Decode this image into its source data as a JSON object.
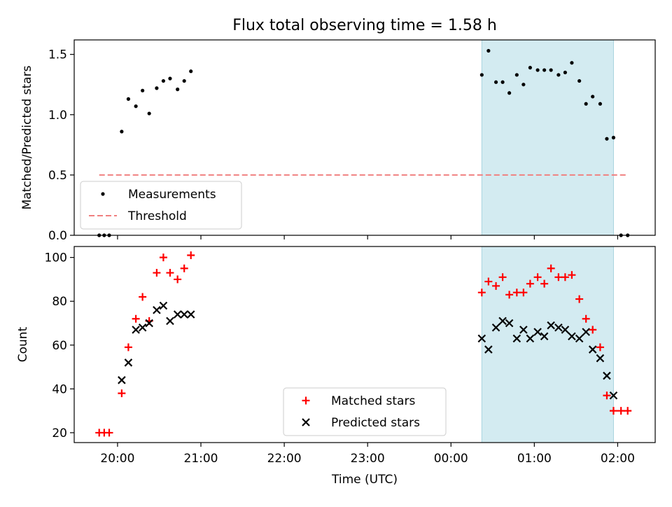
{
  "chart_data": {
    "title": "Flux total observing time = 1.58 h",
    "xlabel": "Time (UTC)",
    "x_unit": "hours past 20:00 UTC",
    "xlim": [
      -0.52,
      6.45
    ],
    "xticks": [
      {
        "v": 0,
        "label": "20:00"
      },
      {
        "v": 1,
        "label": "21:00"
      },
      {
        "v": 2,
        "label": "22:00"
      },
      {
        "v": 3,
        "label": "23:00"
      },
      {
        "v": 4,
        "label": "00:00"
      },
      {
        "v": 5,
        "label": "01:00"
      },
      {
        "v": 6,
        "label": "02:00"
      }
    ],
    "highlight_span": [
      4.37,
      5.95
    ],
    "highlight_color": "#d3ebf1",
    "panels": [
      {
        "type": "scatter",
        "ylabel": "Matched/Predicted stars",
        "ylim": [
          0,
          1.62
        ],
        "yticks": [
          {
            "v": 0,
            "label": "0.0"
          },
          {
            "v": 0.5,
            "label": "0.5"
          },
          {
            "v": 1.0,
            "label": "1.0"
          },
          {
            "v": 1.5,
            "label": "1.5"
          }
        ],
        "series": [
          {
            "name": "Measurements",
            "color": "#000000",
            "marker": "dot",
            "points": [
              [
                -0.22,
                0
              ],
              [
                -0.16,
                0
              ],
              [
                -0.1,
                0
              ],
              [
                0.05,
                0.86
              ],
              [
                0.13,
                1.13
              ],
              [
                0.22,
                1.07
              ],
              [
                0.3,
                1.2
              ],
              [
                0.38,
                1.01
              ],
              [
                0.47,
                1.22
              ],
              [
                0.55,
                1.28
              ],
              [
                0.63,
                1.3
              ],
              [
                0.72,
                1.21
              ],
              [
                0.8,
                1.28
              ],
              [
                0.88,
                1.36
              ],
              [
                4.37,
                1.33
              ],
              [
                4.45,
                1.53
              ],
              [
                4.54,
                1.27
              ],
              [
                4.62,
                1.27
              ],
              [
                4.7,
                1.18
              ],
              [
                4.79,
                1.33
              ],
              [
                4.87,
                1.25
              ],
              [
                4.95,
                1.39
              ],
              [
                5.04,
                1.37
              ],
              [
                5.12,
                1.37
              ],
              [
                5.2,
                1.37
              ],
              [
                5.29,
                1.33
              ],
              [
                5.37,
                1.35
              ],
              [
                5.45,
                1.43
              ],
              [
                5.54,
                1.28
              ],
              [
                5.62,
                1.09
              ],
              [
                5.7,
                1.15
              ],
              [
                5.79,
                1.09
              ],
              [
                5.87,
                0.8
              ],
              [
                5.95,
                0.81
              ],
              [
                6.04,
                0
              ],
              [
                6.12,
                0
              ]
            ]
          },
          {
            "name": "Threshold",
            "color": "#f08080",
            "style": "dashed",
            "x": [
              -0.22,
              6.12
            ],
            "y": [
              0.5,
              0.5
            ]
          }
        ],
        "legend": "lower-left"
      },
      {
        "type": "scatter",
        "ylabel": "Count",
        "ylim": [
          15.5,
          105
        ],
        "yticks": [
          {
            "v": 20,
            "label": "20"
          },
          {
            "v": 40,
            "label": "40"
          },
          {
            "v": 60,
            "label": "60"
          },
          {
            "v": 80,
            "label": "80"
          },
          {
            "v": 100,
            "label": "100"
          }
        ],
        "series": [
          {
            "name": "Matched stars",
            "color": "#ff0000",
            "marker": "plus",
            "points": [
              [
                -0.22,
                20
              ],
              [
                -0.16,
                20
              ],
              [
                -0.1,
                20
              ],
              [
                0.05,
                38
              ],
              [
                0.13,
                59
              ],
              [
                0.22,
                72
              ],
              [
                0.3,
                82
              ],
              [
                0.38,
                71
              ],
              [
                0.47,
                93
              ],
              [
                0.55,
                100
              ],
              [
                0.63,
                93
              ],
              [
                0.72,
                90
              ],
              [
                0.8,
                95
              ],
              [
                0.88,
                101
              ],
              [
                4.37,
                84
              ],
              [
                4.45,
                89
              ],
              [
                4.54,
                87
              ],
              [
                4.62,
                91
              ],
              [
                4.7,
                83
              ],
              [
                4.79,
                84
              ],
              [
                4.87,
                84
              ],
              [
                4.95,
                88
              ],
              [
                5.04,
                91
              ],
              [
                5.12,
                88
              ],
              [
                5.2,
                95
              ],
              [
                5.29,
                91
              ],
              [
                5.37,
                91
              ],
              [
                5.45,
                92
              ],
              [
                5.54,
                81
              ],
              [
                5.62,
                72
              ],
              [
                5.7,
                67
              ],
              [
                5.79,
                59
              ],
              [
                5.87,
                37
              ],
              [
                5.95,
                30
              ],
              [
                6.04,
                30
              ],
              [
                6.12,
                30
              ]
            ]
          },
          {
            "name": "Predicted stars",
            "color": "#000000",
            "marker": "x",
            "points": [
              [
                0.05,
                44
              ],
              [
                0.13,
                52
              ],
              [
                0.22,
                67
              ],
              [
                0.3,
                68
              ],
              [
                0.38,
                70
              ],
              [
                0.47,
                76
              ],
              [
                0.55,
                78
              ],
              [
                0.63,
                71
              ],
              [
                0.72,
                74
              ],
              [
                0.8,
                74
              ],
              [
                0.88,
                74
              ],
              [
                4.37,
                63
              ],
              [
                4.45,
                58
              ],
              [
                4.54,
                68
              ],
              [
                4.62,
                71
              ],
              [
                4.7,
                70
              ],
              [
                4.79,
                63
              ],
              [
                4.87,
                67
              ],
              [
                4.95,
                63
              ],
              [
                5.04,
                66
              ],
              [
                5.12,
                64
              ],
              [
                5.2,
                69
              ],
              [
                5.29,
                68
              ],
              [
                5.37,
                67
              ],
              [
                5.45,
                64
              ],
              [
                5.54,
                63
              ],
              [
                5.62,
                66
              ],
              [
                5.7,
                58
              ],
              [
                5.79,
                54
              ],
              [
                5.87,
                46
              ],
              [
                5.95,
                37
              ]
            ]
          }
        ],
        "legend": "lower-center"
      }
    ]
  }
}
